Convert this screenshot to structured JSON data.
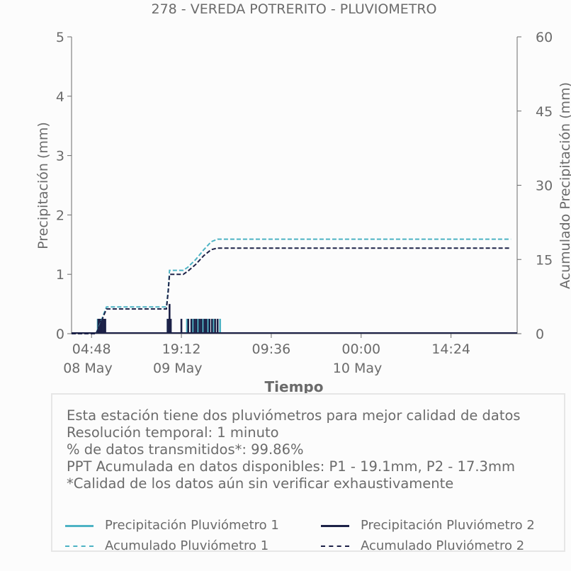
{
  "chart_data": {
    "type": "line",
    "title": "278 - VEREDA POTRERITO - PLUVIOMETRO",
    "xlabel": "Tiempo",
    "ylabel_left": "Precipitación (mm)",
    "ylabel_right": "Acumulado Precipitación (mm)",
    "x_ticks": [
      {
        "time": "04:48",
        "date": "08 May"
      },
      {
        "time": "19:12",
        "date": "09 May"
      },
      {
        "time": "09:36",
        "date": ""
      },
      {
        "time": "00:00",
        "date": "10 May"
      },
      {
        "time": "14:24",
        "date": ""
      }
    ],
    "y_left_ticks": [
      "0",
      "1",
      "2",
      "3",
      "4",
      "5"
    ],
    "y_right_ticks": [
      "0",
      "15",
      "30",
      "45",
      "60"
    ],
    "ylim_left": [
      0,
      5
    ],
    "ylim_right": [
      0,
      60
    ],
    "x_range_hours": [
      0,
      72
    ],
    "series": [
      {
        "name": "Precipitación Pluviómetro 1",
        "axis": "left",
        "style": "solid",
        "color": "#4db3c4",
        "bars": [
          [
            5.8,
            0.25
          ],
          [
            6.0,
            0.25
          ],
          [
            6.3,
            0.25
          ],
          [
            6.6,
            0.25
          ],
          [
            17.0,
            0.25
          ],
          [
            17.2,
            0.25
          ],
          [
            20.1,
            0.25
          ],
          [
            21.1,
            0.25
          ],
          [
            21.9,
            0.25
          ],
          [
            22.7,
            0.25
          ],
          [
            23.5,
            0.25
          ],
          [
            24.3,
            0.25
          ],
          [
            25.4,
            0.25
          ]
        ]
      },
      {
        "name": "Precipitación Pluviómetro 2",
        "axis": "left",
        "style": "solid",
        "color": "#1c2147",
        "bars": [
          [
            5.9,
            0.25
          ],
          [
            6.1,
            0.25
          ],
          [
            6.2,
            0.25
          ],
          [
            6.4,
            0.25
          ],
          [
            6.5,
            0.25
          ],
          [
            6.8,
            0.25
          ],
          [
            7.0,
            0.25
          ],
          [
            17.0,
            0.25
          ],
          [
            17.3,
            0.5
          ],
          [
            17.5,
            0.25
          ],
          [
            19.2,
            0.25
          ],
          [
            20.3,
            0.25
          ],
          [
            20.8,
            0.25
          ],
          [
            21.3,
            0.25
          ],
          [
            21.6,
            0.25
          ],
          [
            22.1,
            0.25
          ],
          [
            22.4,
            0.25
          ],
          [
            22.9,
            0.25
          ],
          [
            23.2,
            0.25
          ],
          [
            23.7,
            0.25
          ],
          [
            24.1,
            0.25
          ],
          [
            24.6,
            0.25
          ],
          [
            25.0,
            0.25
          ]
        ]
      },
      {
        "name": "Acumulado Pluviómetro 1",
        "axis": "right",
        "style": "dashed",
        "color": "#4db3c4",
        "points": [
          [
            0,
            0
          ],
          [
            5.5,
            0
          ],
          [
            6.2,
            2.0
          ],
          [
            6.7,
            3.8
          ],
          [
            7.2,
            5.4
          ],
          [
            16.8,
            5.4
          ],
          [
            17.1,
            9.0
          ],
          [
            17.3,
            12.8
          ],
          [
            19.5,
            12.8
          ],
          [
            20.2,
            13.4
          ],
          [
            21.5,
            15.0
          ],
          [
            22.8,
            17.0
          ],
          [
            24.0,
            18.6
          ],
          [
            25.0,
            19.1
          ],
          [
            72,
            19.1
          ]
        ]
      },
      {
        "name": "Acumulado Pluviómetro 2",
        "axis": "right",
        "style": "dashed",
        "color": "#1c2147",
        "points": [
          [
            0,
            0
          ],
          [
            5.5,
            0
          ],
          [
            6.2,
            1.8
          ],
          [
            6.7,
            3.5
          ],
          [
            7.2,
            5.0
          ],
          [
            16.8,
            5.0
          ],
          [
            17.1,
            8.6
          ],
          [
            17.3,
            12.0
          ],
          [
            19.5,
            12.0
          ],
          [
            20.2,
            12.6
          ],
          [
            21.5,
            14.0
          ],
          [
            22.8,
            15.8
          ],
          [
            24.0,
            17.0
          ],
          [
            25.0,
            17.3
          ],
          [
            72,
            17.3
          ]
        ]
      }
    ],
    "grid": false,
    "legend": "bottom"
  },
  "info": {
    "line1": "Esta estación tiene dos pluviómetros para mejor calidad de datos",
    "line2": "Resolución temporal: 1 minuto",
    "line3": "% de datos transmitidos*: 99.86%",
    "line4": "PPT Acumulada en datos disponibles: P1 - 19.1mm, P2 - 17.3mm",
    "line5": "*Calidad de los datos aún sin verificar exhaustivamente"
  },
  "legend": {
    "p1": "Precipitación Pluviómetro 1",
    "p2": "Precipitación Pluviómetro 2",
    "a1": "Acumulado Pluviómetro 1",
    "a2": "Acumulado Pluviómetro 2"
  },
  "colors": {
    "p1": "#4db3c4",
    "p2": "#1c2147",
    "axis": "#6b6b6b"
  }
}
